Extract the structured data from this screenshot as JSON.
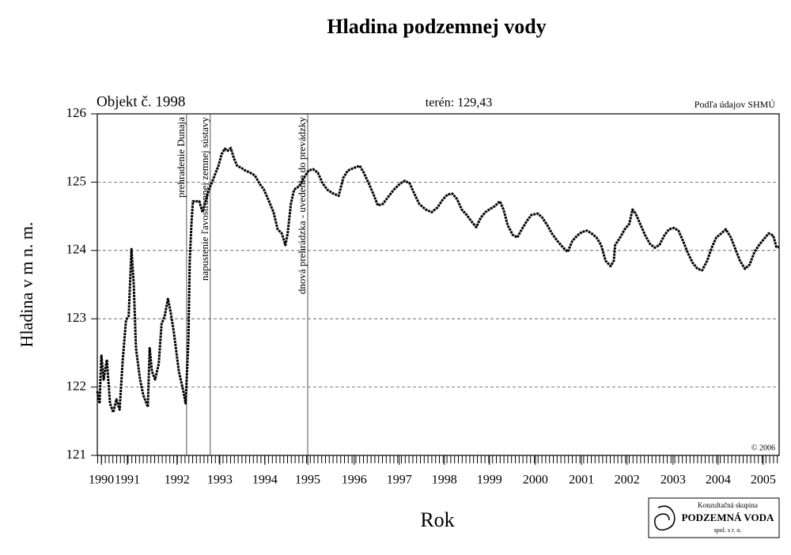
{
  "chart_data": {
    "type": "line",
    "title": "Hladina podzemnej vody",
    "object_label": "Objekt č. 1998",
    "terrain_label": "terén: 129,43",
    "source_label": "Podľa údajov SHMÚ",
    "copyright": "© 2006",
    "x_label": "Rok",
    "y_label": "Hladina v m n. m.",
    "color": "#000000",
    "grid": true,
    "xlim": [
      1990.86,
      2005.83
    ],
    "ylim": [
      121,
      126
    ],
    "yticks": [
      121,
      122,
      123,
      124,
      125,
      126
    ],
    "xticks": [
      {
        "value": 1990.95,
        "label": "1990"
      },
      {
        "value": 1991.52,
        "label": "1991"
      },
      {
        "value": 1992.61,
        "label": "1992"
      },
      {
        "value": 1993.55,
        "label": "1993"
      },
      {
        "value": 1994.54,
        "label": "1994"
      },
      {
        "value": 1995.48,
        "label": "1995"
      },
      {
        "value": 1996.5,
        "label": "1996"
      },
      {
        "value": 1997.49,
        "label": "1997"
      },
      {
        "value": 1998.48,
        "label": "1998"
      },
      {
        "value": 1999.47,
        "label": "1999"
      },
      {
        "value": 2000.48,
        "label": "2000"
      },
      {
        "value": 2001.49,
        "label": "2001"
      },
      {
        "value": 2002.49,
        "label": "2002"
      },
      {
        "value": 2003.5,
        "label": "2003"
      },
      {
        "value": 2004.49,
        "label": "2004"
      },
      {
        "value": 2005.48,
        "label": "2005"
      }
    ],
    "annotations": [
      {
        "x": 1992.82,
        "text": "prehradenie Dunaja"
      },
      {
        "x": 1993.34,
        "text": "napustenie ľavostrannej zemnej sústavy"
      },
      {
        "x": 1995.48,
        "text": "dnová prehrádzka - uvedenie do prevádzky"
      }
    ],
    "x": [
      1990.86,
      1990.91,
      1990.95,
      1991.0,
      1991.07,
      1991.14,
      1991.21,
      1991.28,
      1991.35,
      1991.42,
      1991.49,
      1991.55,
      1991.61,
      1991.66,
      1991.71,
      1991.8,
      1991.87,
      1991.97,
      1992.01,
      1992.06,
      1992.13,
      1992.21,
      1992.27,
      1992.34,
      1992.41,
      1992.47,
      1992.54,
      1992.65,
      1992.75,
      1992.8,
      1992.86,
      1992.89,
      1992.93,
      1992.96,
      1993.03,
      1993.1,
      1993.17,
      1993.24,
      1993.31,
      1993.38,
      1993.45,
      1993.52,
      1993.59,
      1993.66,
      1993.72,
      1993.79,
      1993.86,
      1993.93,
      1994.02,
      1994.11,
      1994.21,
      1994.32,
      1994.42,
      1994.52,
      1994.63,
      1994.73,
      1994.82,
      1994.91,
      1994.99,
      1995.04,
      1995.11,
      1995.18,
      1995.29,
      1995.39,
      1995.5,
      1995.6,
      1995.7,
      1995.81,
      1995.91,
      1996.02,
      1996.16,
      1996.26,
      1996.36,
      1996.5,
      1996.62,
      1996.71,
      1996.82,
      1996.92,
      1997.02,
      1997.13,
      1997.23,
      1997.37,
      1997.51,
      1997.61,
      1997.72,
      1997.82,
      1997.93,
      1998.07,
      1998.2,
      1998.33,
      1998.45,
      1998.55,
      1998.66,
      1998.76,
      1998.86,
      1998.97,
      1999.07,
      1999.18,
      1999.28,
      1999.38,
      1999.49,
      1999.59,
      1999.7,
      1999.78,
      1999.87,
      1999.98,
      2000.08,
      2000.18,
      2000.29,
      2000.39,
      2000.53,
      2000.63,
      2000.74,
      2000.84,
      2000.96,
      2001.09,
      2001.19,
      2001.29,
      2001.4,
      2001.5,
      2001.61,
      2001.71,
      2001.82,
      2001.92,
      2002.02,
      2002.13,
      2002.2,
      2002.23,
      2002.34,
      2002.44,
      2002.54,
      2002.61,
      2002.68,
      2002.79,
      2002.89,
      2002.99,
      2003.1,
      2003.2,
      2003.31,
      2003.41,
      2003.52,
      2003.62,
      2003.72,
      2003.83,
      2003.93,
      2004.04,
      2004.14,
      2004.25,
      2004.35,
      2004.45,
      2004.56,
      2004.66,
      2004.77,
      2004.87,
      2004.97,
      2005.08,
      2005.18,
      2005.29,
      2005.39,
      2005.5,
      2005.6,
      2005.7,
      2005.77,
      2005.83
    ],
    "values": [
      121.94,
      121.76,
      122.46,
      122.11,
      122.4,
      121.76,
      121.63,
      121.82,
      121.67,
      122.4,
      122.98,
      123.04,
      124.02,
      123.5,
      122.57,
      122.11,
      121.88,
      121.71,
      122.57,
      122.23,
      122.11,
      122.34,
      122.92,
      123.04,
      123.29,
      123.1,
      122.81,
      122.23,
      121.94,
      121.76,
      122.69,
      123.85,
      124.43,
      124.72,
      124.72,
      124.72,
      124.56,
      124.72,
      124.89,
      125.0,
      125.12,
      125.24,
      125.41,
      125.49,
      125.46,
      125.5,
      125.35,
      125.24,
      125.21,
      125.17,
      125.14,
      125.1,
      124.98,
      124.89,
      124.72,
      124.56,
      124.31,
      124.25,
      124.08,
      124.25,
      124.68,
      124.89,
      124.94,
      125.06,
      125.17,
      125.19,
      125.14,
      124.98,
      124.89,
      124.84,
      124.8,
      125.06,
      125.17,
      125.21,
      125.24,
      125.14,
      124.98,
      124.83,
      124.66,
      124.68,
      124.77,
      124.89,
      124.98,
      125.02,
      124.98,
      124.83,
      124.68,
      124.6,
      124.56,
      124.63,
      124.75,
      124.82,
      124.83,
      124.75,
      124.6,
      124.52,
      124.43,
      124.34,
      124.48,
      124.56,
      124.61,
      124.65,
      124.72,
      124.6,
      124.37,
      124.23,
      124.19,
      124.31,
      124.43,
      124.52,
      124.54,
      124.48,
      124.37,
      124.25,
      124.14,
      124.04,
      123.98,
      124.14,
      124.22,
      124.27,
      124.29,
      124.25,
      124.19,
      124.08,
      123.85,
      123.77,
      123.85,
      124.08,
      124.19,
      124.31,
      124.39,
      124.6,
      124.54,
      124.37,
      124.22,
      124.1,
      124.04,
      124.08,
      124.22,
      124.31,
      124.33,
      124.29,
      124.14,
      123.96,
      123.82,
      123.73,
      123.71,
      123.85,
      124.04,
      124.19,
      124.25,
      124.31,
      124.19,
      124.02,
      123.85,
      123.73,
      123.79,
      123.98,
      124.08,
      124.17,
      124.25,
      124.22,
      124.05,
      124.05
    ]
  },
  "logo": {
    "line1": "Konzultačná skupina",
    "line2": "PODZEMNÁ VODA",
    "line3": "spol. s r. o."
  }
}
